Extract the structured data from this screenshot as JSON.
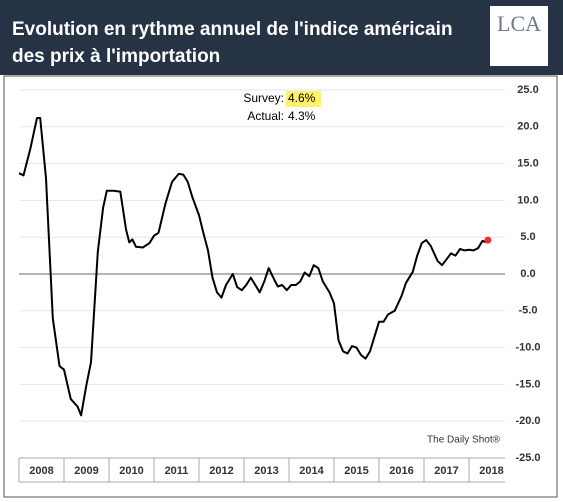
{
  "chart_data": {
    "type": "line",
    "title_lines": [
      "Evolution en rythme annuel de l'indice américain",
      "des prix à l'importation"
    ],
    "logo": "LCA",
    "source": "The Daily Shot®",
    "annotations": [
      {
        "label": "Survey:",
        "value_label": "4.6%"
      },
      {
        "label": "Actual:",
        "value_label": "4.3%"
      }
    ],
    "x": [
      2008.0,
      2008.1,
      2008.25,
      2008.4,
      2008.47,
      2008.6,
      2008.75,
      2008.9,
      2009.0,
      2009.15,
      2009.3,
      2009.38,
      2009.5,
      2009.6,
      2009.75,
      2009.87,
      2009.95,
      2010.1,
      2010.25,
      2010.38,
      2010.45,
      2010.52,
      2010.6,
      2010.75,
      2010.9,
      2011.0,
      2011.1,
      2011.25,
      2011.4,
      2011.55,
      2011.65,
      2011.75,
      2011.85,
      2012.0,
      2012.1,
      2012.2,
      2012.3,
      2012.4,
      2012.5,
      2012.6,
      2012.75,
      2012.85,
      2012.95,
      2013.05,
      2013.15,
      2013.25,
      2013.35,
      2013.45,
      2013.55,
      2013.65,
      2013.75,
      2013.85,
      2013.95,
      2014.05,
      2014.15,
      2014.25,
      2014.35,
      2014.45,
      2014.55,
      2014.65,
      2014.75,
      2014.9,
      2015.0,
      2015.1,
      2015.2,
      2015.3,
      2015.4,
      2015.5,
      2015.6,
      2015.7,
      2015.8,
      2015.9,
      2016.0,
      2016.1,
      2016.2,
      2016.35,
      2016.5,
      2016.6,
      2016.75,
      2016.85,
      2016.95,
      2017.05,
      2017.15,
      2017.3,
      2017.4,
      2017.5,
      2017.6,
      2017.7,
      2017.8,
      2017.9,
      2018.0,
      2018.1,
      2018.2,
      2018.3,
      2018.4
    ],
    "series": [
      {
        "color": "#000000",
        "values": [
          13.7,
          13.4,
          17,
          21.2,
          21.2,
          13,
          -6,
          -12.5,
          -13,
          -17,
          -18,
          -19.2,
          -15,
          -12,
          3,
          9,
          11.3,
          11.3,
          11.2,
          6,
          4.3,
          4.7,
          3.7,
          3.6,
          4.2,
          5.2,
          5.6,
          9.5,
          12.5,
          13.6,
          13.5,
          12.5,
          10.5,
          8,
          5.5,
          3.2,
          -0.5,
          -2.5,
          -3.2,
          -1.5,
          0,
          -1.8,
          -2.2,
          -1.5,
          -0.5,
          -1.5,
          -2.5,
          -1,
          0.8,
          -0.5,
          -1.7,
          -1.5,
          -2.2,
          -1.5,
          -1.5,
          -1,
          0.2,
          -0.3,
          1.2,
          0.8,
          -1,
          -2.5,
          -4,
          -9,
          -10.5,
          -10.8,
          -9.8,
          -10,
          -11,
          -11.5,
          -10.5,
          -8.5,
          -6.5,
          -6.5,
          -5.5,
          -5,
          -3,
          -1.2,
          0.3,
          2.5,
          4.2,
          4.6,
          3.8,
          1.8,
          1.2,
          2.0,
          2.8,
          2.5,
          3.4,
          3.2,
          3.3,
          3.2,
          3.5,
          4.5,
          4.3
        ]
      }
    ],
    "survey_point": {
      "x": 2018.42,
      "value": 4.6,
      "color": "#e8332c"
    },
    "xlim": [
      2008,
      2018.8
    ],
    "xticks": [
      2008,
      2009,
      2010,
      2011,
      2012,
      2013,
      2014,
      2015,
      2016,
      2017,
      2018
    ],
    "ylim": [
      -25,
      25
    ],
    "yticks": [
      {
        "value": 25,
        "label": "25.0"
      },
      {
        "value": 20,
        "label": "20.0"
      },
      {
        "value": 15,
        "label": "15.0"
      },
      {
        "value": 10,
        "label": "10.0"
      },
      {
        "value": 5,
        "label": "5.0"
      },
      {
        "value": 0,
        "label": "0.0"
      },
      {
        "value": -5,
        "label": "-5.0"
      },
      {
        "value": -10,
        "label": "-10.0"
      },
      {
        "value": -15,
        "label": "-15.0"
      },
      {
        "value": -20,
        "label": "-20.0"
      },
      {
        "value": -25,
        "label": "-25.0"
      }
    ],
    "grid": true
  }
}
